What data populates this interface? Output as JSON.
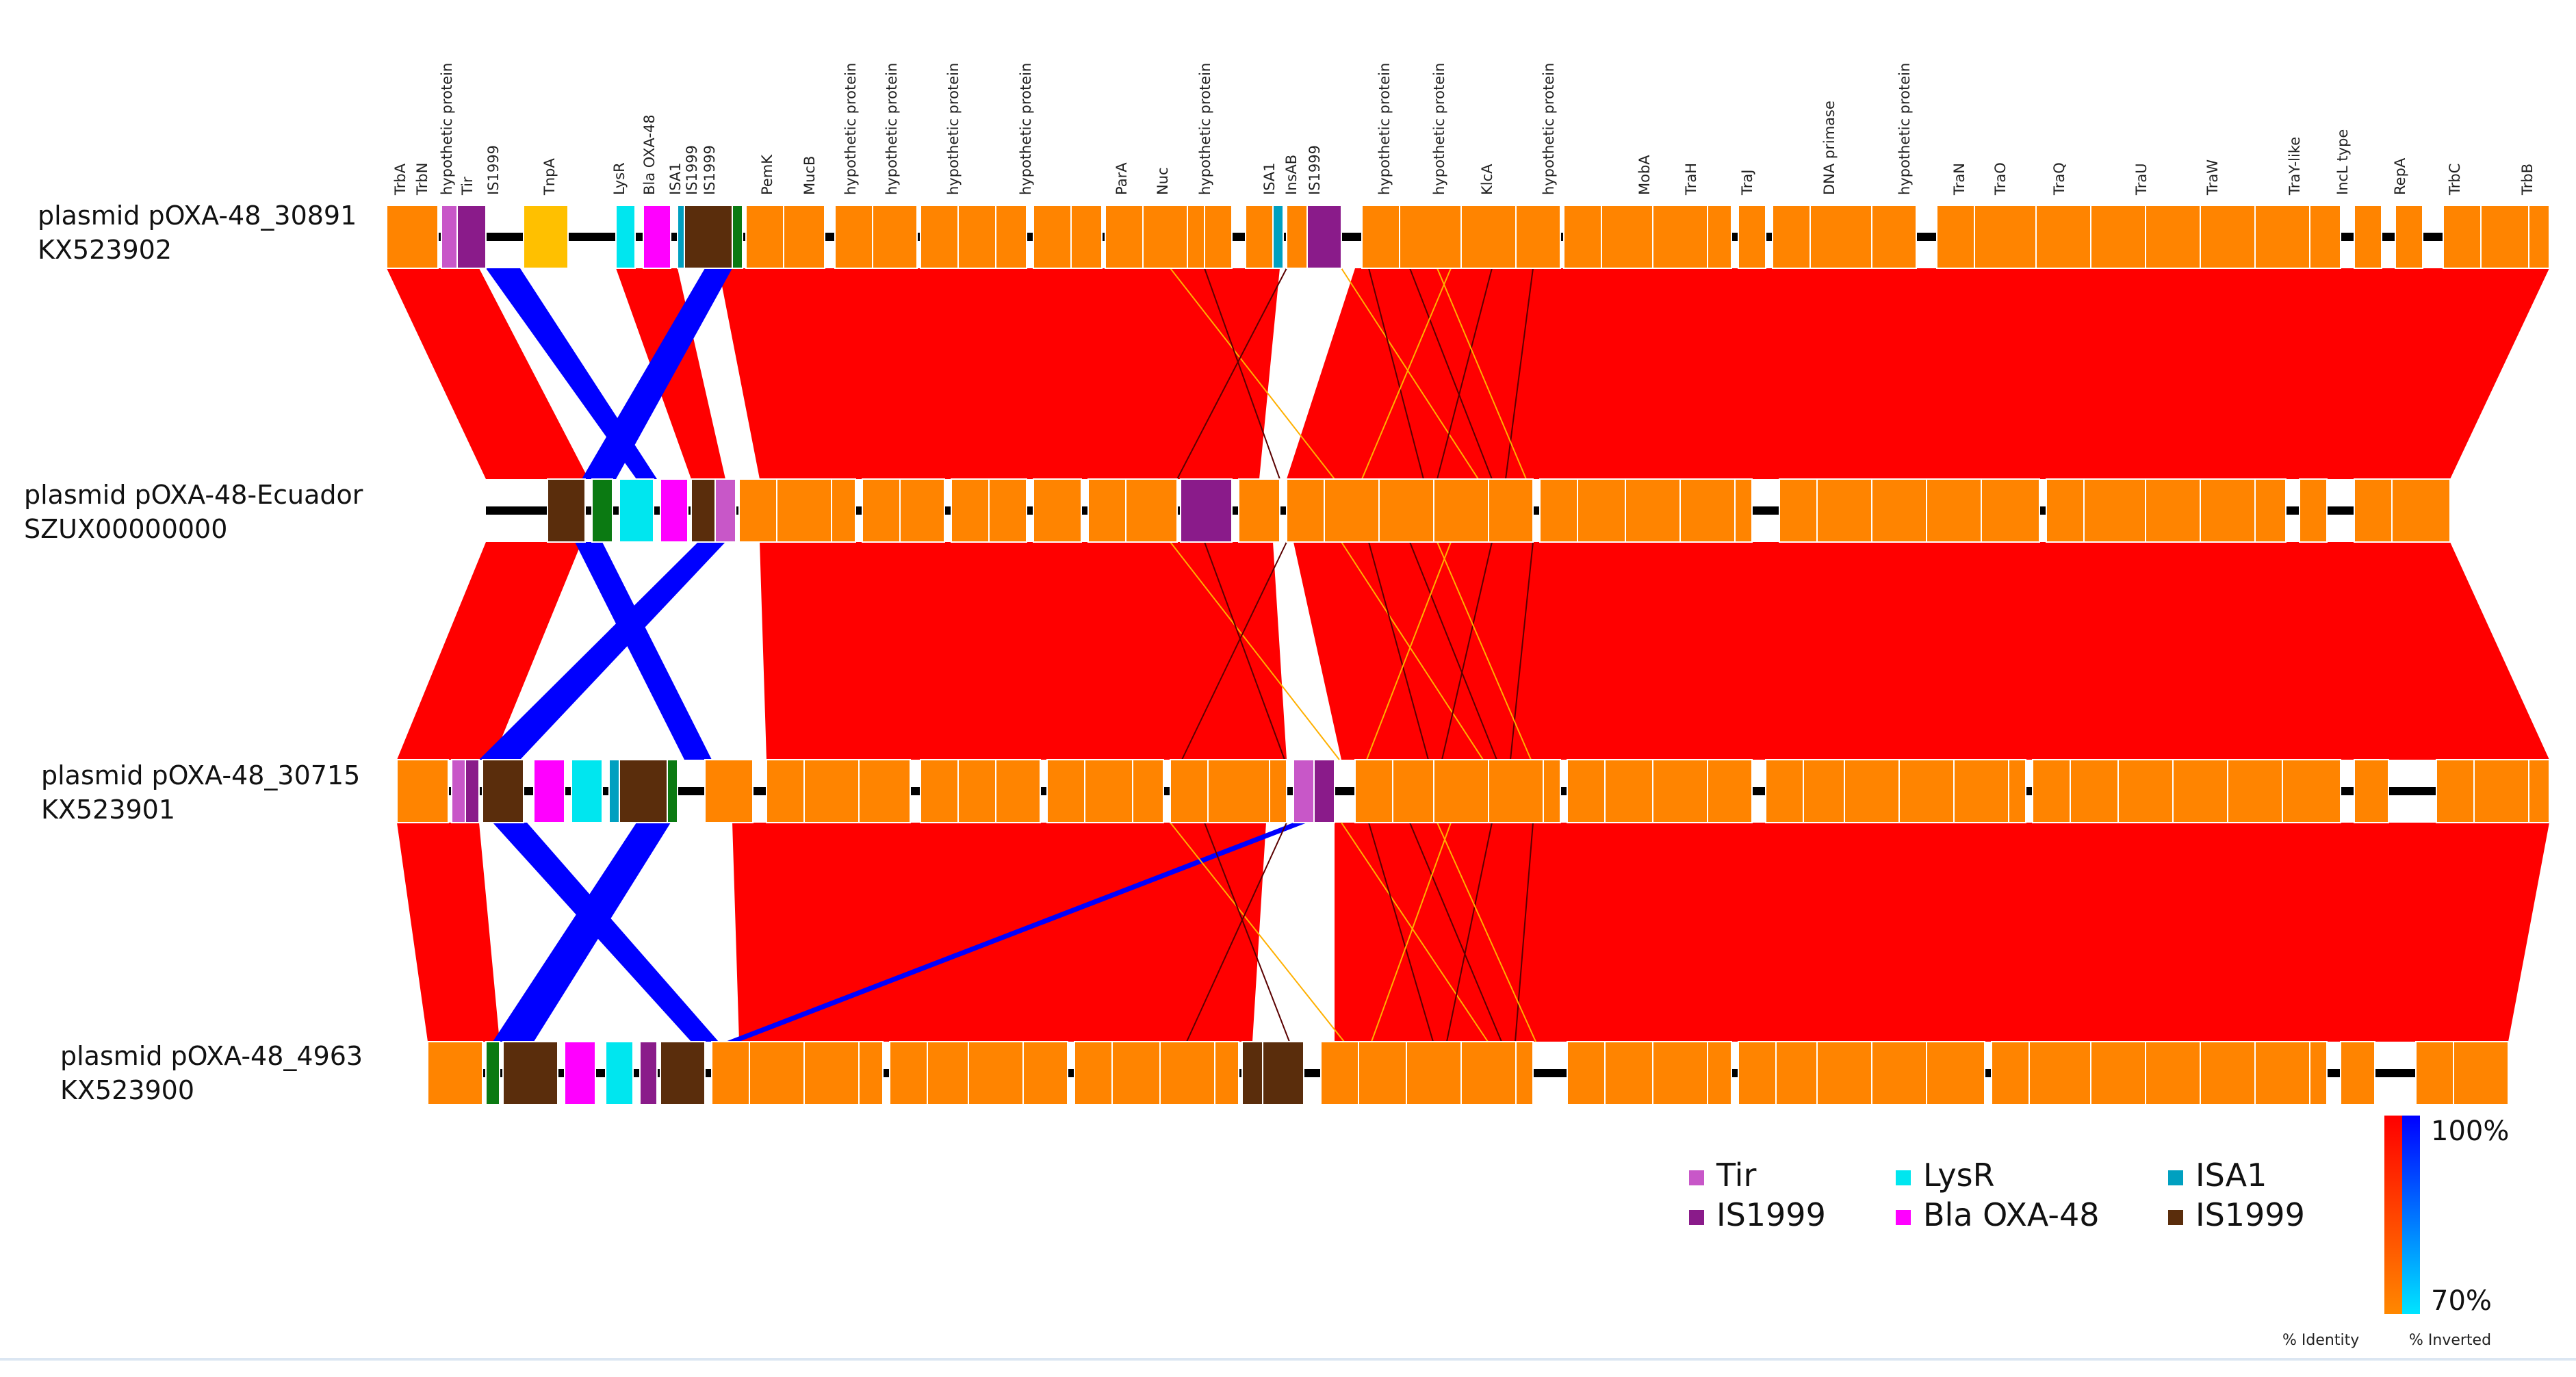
{
  "colors": {
    "gene": "#ff8400",
    "gene_edge": "#ffffff",
    "backbone": "#000000",
    "identity_high": "#ff0000",
    "identity_low": "#ff8800",
    "inverted_high": "#0000ff",
    "inverted_low": "#00e5ff",
    "Tir": "#c857c8",
    "IS1999_purple": "#8a1b8a",
    "TnpA": "#ffc000",
    "LysR": "#00e6ef",
    "Bla OXA-48": "#ff00ff",
    "ISA1": "#00a0c0",
    "IS1999_brown": "#5a2d0c",
    "green": "#0b7a12"
  },
  "plasmids": [
    {
      "name": "plasmid pOXA-48_30891",
      "accession": "KX523902"
    },
    {
      "name": "plasmid pOXA-48-Ecuador",
      "accession": "SZUX00000000"
    },
    {
      "name": "plasmid pOXA-48_30715",
      "accession": "KX523901"
    },
    {
      "name": "plasmid pOXA-48_4963",
      "accession": "KX523900"
    }
  ],
  "gene_labels": [
    "TrbA",
    "TrbN",
    "hypothetic protein",
    "Tir",
    "IS1999",
    "TnpA",
    "LysR",
    "Bla OXA-48",
    "ISA1",
    "IS1999",
    "IS1999",
    "PemK",
    "MucB",
    "hypothetic protein",
    "hypothetic protein",
    "hypothetic protein",
    "hypothetic protein",
    "ParA",
    "Nuc",
    "hypothetic protein",
    "ISA1",
    "InsAB",
    "IS1999",
    "hypothetic protein",
    "hypothetic protein",
    "KlcA",
    "hypothetic protein",
    "MobA",
    "TraH",
    "TraJ",
    "DNA primase",
    "hypothetic protein",
    "TraN",
    "TraO",
    "TraQ",
    "TraU",
    "TraW",
    "TraY-like",
    "IncL type",
    "RepA",
    "TrbC",
    "TrbB"
  ],
  "legend": [
    {
      "label": "Tir",
      "color": "#c857c8"
    },
    {
      "label": "IS1999",
      "color": "#8a1b8a"
    },
    {
      "label": "LysR",
      "color": "#00e6ef"
    },
    {
      "label": "Bla OXA-48",
      "color": "#ff00ff"
    },
    {
      "label": "ISA1",
      "color": "#00a0c0"
    },
    {
      "label": "IS1999",
      "color": "#5a2d0c"
    }
  ],
  "scale": {
    "max_label": "100%",
    "min_label": "70%",
    "identity_label": "% Identity",
    "inverted_label": "% Inverted"
  }
}
